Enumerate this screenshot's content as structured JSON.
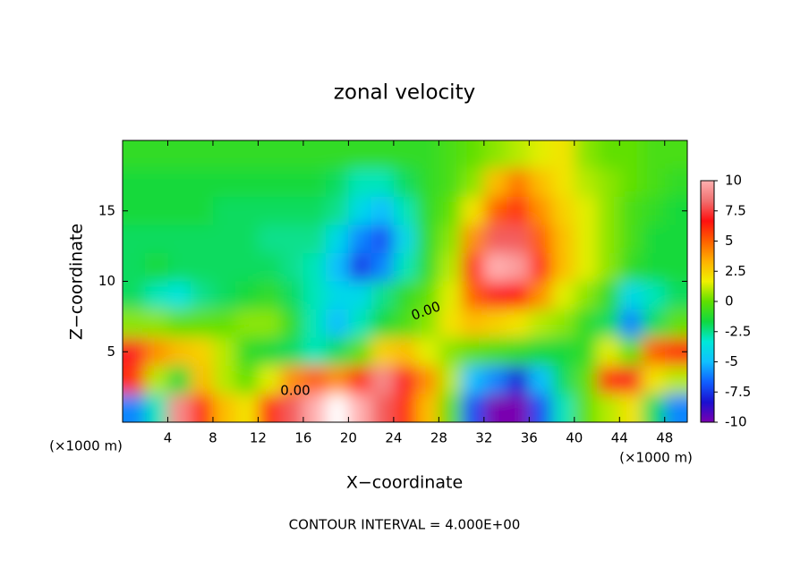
{
  "chart_data": {
    "type": "contour",
    "title": "zonal velocity",
    "x_label": "X−coordinate",
    "y_label": "Z−coordinate",
    "x_unit_label": "(×1000 m)",
    "footer": "CONTOUR INTERVAL = 4.000E+00",
    "contour_labels": [
      "0.00",
      "0.00"
    ],
    "x": [
      1,
      3,
      5,
      7,
      9,
      11,
      13,
      15,
      17,
      19,
      21,
      23,
      25,
      27,
      29,
      31,
      33,
      35,
      37,
      39,
      41,
      43,
      45,
      47,
      49
    ],
    "y": [
      19,
      17,
      15,
      13,
      11,
      9,
      7,
      5,
      3,
      1
    ],
    "z": [
      [
        -1,
        -1,
        -1,
        -1,
        -1,
        -1,
        -1,
        -1,
        -1,
        -1,
        -1,
        -1,
        -1,
        -1,
        -0.5,
        0,
        0.5,
        1,
        1.5,
        2,
        0.5,
        0,
        0,
        -0.5,
        -0.5
      ],
      [
        -1.5,
        -1.5,
        -1.5,
        -1.5,
        -1.5,
        -1.5,
        -1.5,
        -1.5,
        -1.5,
        -2,
        -3,
        -3,
        -2,
        -1,
        -0.5,
        0.5,
        3,
        4.5,
        3,
        2,
        1,
        0.5,
        0,
        -0.5,
        -1
      ],
      [
        -1.5,
        -1.5,
        -1.5,
        -1.5,
        -2,
        -2,
        -2,
        -2,
        -2,
        -2.5,
        -4,
        -5,
        -3,
        -1,
        0,
        2,
        5,
        6,
        4,
        2.5,
        1.5,
        0.5,
        -0.5,
        -1,
        -1.5
      ],
      [
        -2,
        -2,
        -2,
        -2,
        -2,
        -2,
        -2.5,
        -2.5,
        -2.5,
        -4,
        -6,
        -7,
        -4,
        -1,
        0.5,
        4,
        8,
        8,
        5,
        3,
        1.5,
        0.5,
        -0.5,
        -1.5,
        -1.5
      ],
      [
        -2,
        -1.5,
        -2,
        -2,
        -2,
        -2,
        -2,
        -2.5,
        -3,
        -5,
        -7.5,
        -6,
        -3,
        -1,
        1,
        6,
        10,
        9.5,
        6,
        3,
        1.5,
        0.5,
        -1,
        -1.5,
        -1.5
      ],
      [
        -2,
        -3,
        -3.5,
        -2.5,
        -2,
        -1.5,
        -1,
        -2,
        -3,
        -4,
        -4,
        -2.5,
        -1,
        0,
        1.5,
        5,
        7,
        6.5,
        4,
        1.5,
        0.5,
        -1,
        -4,
        -3,
        -2
      ],
      [
        0.5,
        0.5,
        0,
        0,
        0,
        0.5,
        0.5,
        -1,
        -3,
        -5,
        -3,
        -1.5,
        -0.5,
        0.5,
        2,
        3,
        2.5,
        2,
        1,
        0.5,
        -1,
        -2,
        -6,
        -2,
        0
      ],
      [
        7,
        4,
        3,
        2.5,
        1,
        -1,
        -1.5,
        -2,
        -3,
        -2,
        0,
        2.5,
        3,
        1.5,
        0.5,
        0,
        -0.5,
        -1,
        -1.5,
        -1.5,
        -1,
        1.5,
        0,
        5,
        6
      ],
      [
        6,
        1,
        -1.5,
        3,
        1,
        0,
        1.5,
        4,
        5,
        4,
        6,
        9,
        7,
        4,
        1,
        -5,
        -6,
        -8,
        -5,
        -2,
        0,
        6,
        7,
        2,
        1
      ],
      [
        -6,
        -3,
        9,
        6,
        3,
        2,
        6,
        8,
        10,
        11,
        10,
        8,
        6,
        3,
        0,
        -7,
        -10,
        -10,
        -7,
        -3,
        0,
        1,
        2,
        -2,
        -6
      ]
    ],
    "xlim": [
      0,
      50
    ],
    "ylim": [
      0,
      20
    ],
    "xticks": [
      4,
      8,
      12,
      16,
      20,
      24,
      28,
      32,
      36,
      40,
      44,
      48
    ],
    "yticks": [
      5,
      10,
      15
    ],
    "clim": [
      -10,
      10
    ],
    "cticks": [
      10,
      7.5,
      5,
      2.5,
      0,
      -2.5,
      -5,
      -7.5,
      -10
    ],
    "colormap": [
      "#7a00b0",
      "#1a10d0",
      "#1060ff",
      "#10c0ff",
      "#00e8d8",
      "#10d840",
      "#60e000",
      "#f0f000",
      "#ffb000",
      "#ff6000",
      "#ff1010",
      "#f07070",
      "#ffb0b0"
    ],
    "above_color": "#ffffff"
  }
}
